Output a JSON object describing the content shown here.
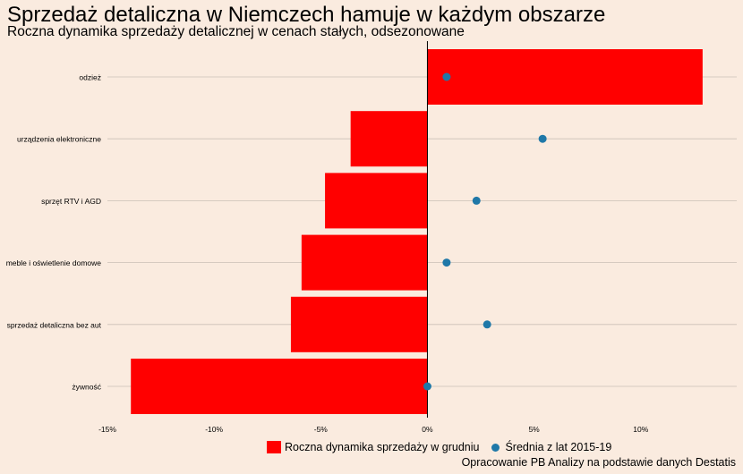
{
  "title": "Sprzedaż detaliczna w Niemczech hamuje w każdym obszarze",
  "subtitle": "Roczna dynamika sprzedaży detalicznej w cenach stałych, odsezonowane",
  "caption": "Opracowanie PB Analizy na podstawie danych Destatis",
  "colors": {
    "background": "#faebdf",
    "bar": "#ff0000",
    "dot": "#1f78a8",
    "grid": "#c9c0b6",
    "axis": "#000000"
  },
  "chart_data": {
    "type": "bar",
    "orientation": "horizontal",
    "categories": [
      "odzież",
      "urządzenia elektroniczne",
      "sprzęt RTV i AGD",
      "meble i oświetlenie domowe",
      "sprzedaż detaliczna bez aut",
      "żywność"
    ],
    "series": [
      {
        "name": "Roczna dynamika sprzedaży w grudniu",
        "type": "bar",
        "values": [
          12.9,
          -3.6,
          -4.8,
          -5.9,
          -6.4,
          -13.9
        ]
      },
      {
        "name": "Średnia z lat 2015-19",
        "type": "point",
        "values": [
          0.9,
          5.4,
          2.3,
          0.9,
          2.8,
          0.0
        ]
      }
    ],
    "xlim": [
      -15,
      14.5
    ],
    "xticks": [
      -15,
      -10,
      -5,
      0,
      5,
      10
    ],
    "xtick_labels": [
      "-15%",
      "-10%",
      "-5%",
      "0%",
      "5%",
      "10%"
    ],
    "grid": "horizontal",
    "legend_position": "bottom"
  }
}
